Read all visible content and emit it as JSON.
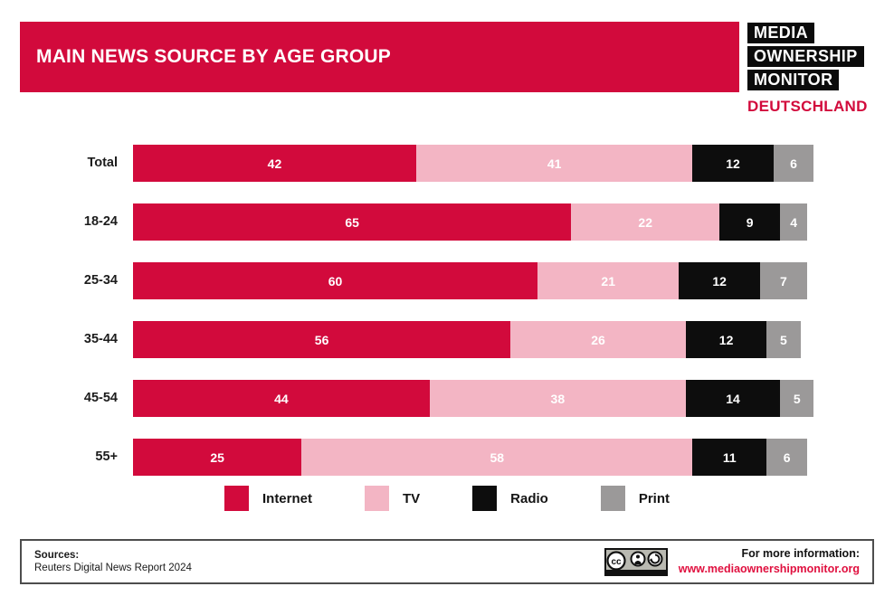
{
  "header": {
    "title": "MAIN NEWS SOURCE BY AGE GROUP"
  },
  "logo": {
    "lines": [
      "MEDIA",
      "OWNERSHIP",
      "MONITOR"
    ],
    "country": "DEUTSCHLAND"
  },
  "colors": {
    "brand_red": "#d20a3c",
    "pink": "#f3b5c4",
    "black": "#0d0d0d",
    "gray": "#9b9999",
    "url_red": "#e0103f"
  },
  "chart_data": {
    "type": "bar",
    "stacked": true,
    "orientation": "horizontal",
    "grid": false,
    "legend_position": "bottom",
    "title": "MAIN NEWS SOURCE BY AGE GROUP",
    "categories": [
      "Total",
      "18-24",
      "25-34",
      "35-44",
      "45-54",
      "55+"
    ],
    "series": [
      {
        "name": "Internet",
        "color": "#d20a3c",
        "values": [
          42,
          65,
          60,
          56,
          44,
          25
        ]
      },
      {
        "name": "TV",
        "color": "#f3b5c4",
        "values": [
          41,
          22,
          21,
          26,
          38,
          58
        ]
      },
      {
        "name": "Radio",
        "color": "#0d0d0d",
        "values": [
          12,
          9,
          12,
          12,
          14,
          11
        ]
      },
      {
        "name": "Print",
        "color": "#9b9999",
        "values": [
          6,
          4,
          7,
          5,
          5,
          6
        ]
      }
    ]
  },
  "legend": {
    "items": [
      {
        "label": "Internet",
        "color": "#d20a3c"
      },
      {
        "label": "TV",
        "color": "#f3b5c4"
      },
      {
        "label": "Radio",
        "color": "#0d0d0d"
      },
      {
        "label": "Print",
        "color": "#9b9999"
      }
    ]
  },
  "footer": {
    "sources_label": "Sources:",
    "sources_text": "Reuters Digital News Report 2024",
    "cc_badge": "cc-by-sa-badge",
    "info_label": "For more information:",
    "info_url": "www.mediaownershipmonitor.org"
  }
}
